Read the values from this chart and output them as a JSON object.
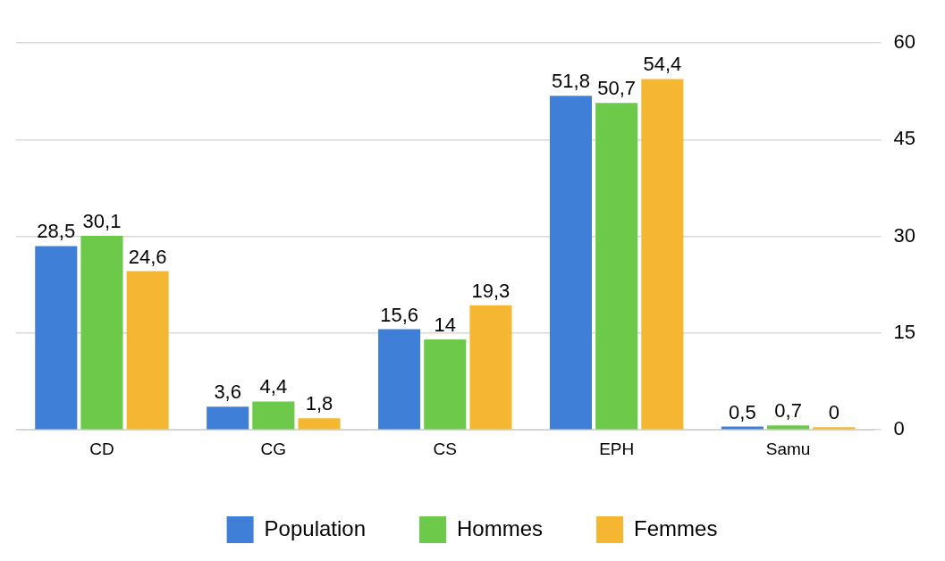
{
  "chart_data": {
    "type": "bar",
    "categories": [
      "CD",
      "CG",
      "CS",
      "EPH",
      "Samu"
    ],
    "series": [
      {
        "name": "Population",
        "color": "#3f7fd8",
        "values": [
          28.5,
          3.6,
          15.6,
          51.8,
          0.5
        ],
        "value_labels": [
          "28,5",
          "3,6",
          "15,6",
          "51,8",
          "0,5"
        ]
      },
      {
        "name": "Hommes",
        "color": "#6cc94a",
        "values": [
          30.1,
          4.4,
          14,
          50.7,
          0.7
        ],
        "value_labels": [
          "30,1",
          "4,4",
          "14",
          "50,7",
          "0,7"
        ]
      },
      {
        "name": "Femmes",
        "color": "#f5b731",
        "values": [
          24.6,
          1.8,
          19.3,
          54.4,
          0
        ],
        "value_labels": [
          "24,6",
          "1,8",
          "19,3",
          "54,4",
          "0"
        ]
      }
    ],
    "ylim": [
      0,
      60
    ],
    "yticks": [
      0,
      15,
      30,
      45,
      60
    ],
    "grid": "y",
    "legend": "bottom"
  }
}
